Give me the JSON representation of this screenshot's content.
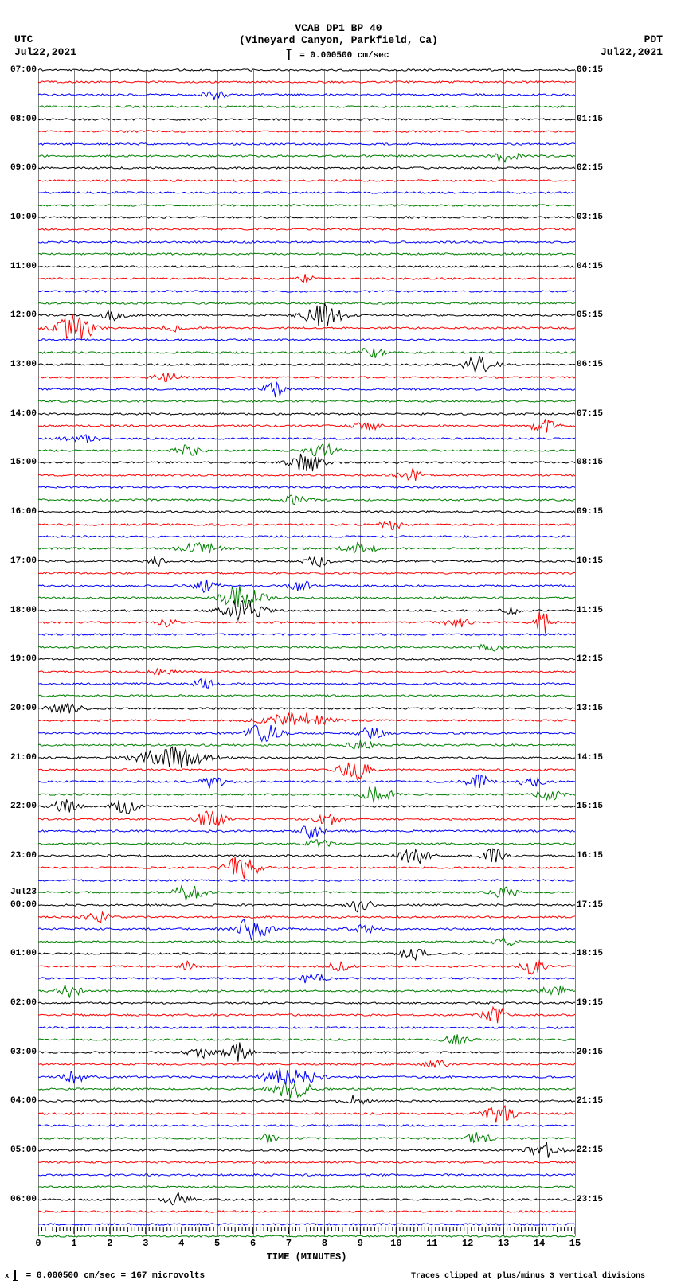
{
  "header": {
    "title1": "VCAB DP1 BP 40",
    "title2": "(Vineyard Canyon, Parkfield, Ca)",
    "scale_text": "= 0.000500 cm/sec",
    "left_tz": "UTC",
    "left_date": "Jul22,2021",
    "right_tz": "PDT",
    "right_date": "Jul22,2021"
  },
  "plot": {
    "colors": [
      "#000000",
      "#ff0000",
      "#0000ff",
      "#008000"
    ],
    "grid_color": "#808080",
    "background": "#ffffff",
    "x_min": 0,
    "x_max": 15,
    "x_ticks": [
      0,
      1,
      2,
      3,
      4,
      5,
      6,
      7,
      8,
      9,
      10,
      11,
      12,
      13,
      14,
      15
    ],
    "x_label": "TIME (MINUTES)",
    "trace_count": 96,
    "noise_amp": 1.2,
    "left_labels": {
      "0": "07:00",
      "4": "08:00",
      "8": "09:00",
      "12": "10:00",
      "16": "11:00",
      "20": "12:00",
      "24": "13:00",
      "28": "14:00",
      "32": "15:00",
      "36": "16:00",
      "40": "17:00",
      "44": "18:00",
      "48": "19:00",
      "52": "20:00",
      "56": "21:00",
      "60": "22:00",
      "64": "23:00",
      "67": "Jul23",
      "68": "00:00",
      "72": "01:00",
      "76": "02:00",
      "80": "03:00",
      "84": "04:00",
      "88": "05:00",
      "92": "06:00"
    },
    "right_labels": {
      "0": "00:15",
      "4": "01:15",
      "8": "02:15",
      "12": "03:15",
      "16": "04:15",
      "20": "05:15",
      "24": "06:15",
      "28": "07:15",
      "32": "08:15",
      "36": "09:15",
      "40": "10:15",
      "44": "11:15",
      "48": "12:15",
      "52": "13:15",
      "56": "14:15",
      "60": "15:15",
      "64": "16:15",
      "68": "17:15",
      "72": "18:15",
      "76": "19:15",
      "80": "20:15",
      "84": "21:15",
      "88": "22:15",
      "92": "23:15"
    },
    "events": [
      {
        "trace": 2,
        "x": 0.33,
        "amp": 5,
        "w": 0.03
      },
      {
        "trace": 7,
        "x": 0.87,
        "amp": 8,
        "w": 0.03
      },
      {
        "trace": 17,
        "x": 0.5,
        "amp": 5,
        "w": 0.02
      },
      {
        "trace": 20,
        "x": 0.53,
        "amp": 14,
        "w": 0.05
      },
      {
        "trace": 20,
        "x": 0.14,
        "amp": 6,
        "w": 0.03
      },
      {
        "trace": 21,
        "x": 0.07,
        "amp": 16,
        "w": 0.05
      },
      {
        "trace": 21,
        "x": 0.25,
        "amp": 6,
        "w": 0.02
      },
      {
        "trace": 23,
        "x": 0.62,
        "amp": 7,
        "w": 0.03
      },
      {
        "trace": 24,
        "x": 0.82,
        "amp": 10,
        "w": 0.04
      },
      {
        "trace": 25,
        "x": 0.24,
        "amp": 7,
        "w": 0.03
      },
      {
        "trace": 26,
        "x": 0.44,
        "amp": 9,
        "w": 0.03
      },
      {
        "trace": 29,
        "x": 0.61,
        "amp": 7,
        "w": 0.03
      },
      {
        "trace": 29,
        "x": 0.94,
        "amp": 9,
        "w": 0.03
      },
      {
        "trace": 30,
        "x": 0.08,
        "amp": 6,
        "w": 0.04
      },
      {
        "trace": 31,
        "x": 0.28,
        "amp": 7,
        "w": 0.03
      },
      {
        "trace": 31,
        "x": 0.53,
        "amp": 8,
        "w": 0.04
      },
      {
        "trace": 32,
        "x": 0.5,
        "amp": 12,
        "w": 0.04
      },
      {
        "trace": 33,
        "x": 0.69,
        "amp": 9,
        "w": 0.03
      },
      {
        "trace": 35,
        "x": 0.48,
        "amp": 6,
        "w": 0.03
      },
      {
        "trace": 37,
        "x": 0.66,
        "amp": 6,
        "w": 0.03
      },
      {
        "trace": 39,
        "x": 0.3,
        "amp": 7,
        "w": 0.05
      },
      {
        "trace": 39,
        "x": 0.6,
        "amp": 7,
        "w": 0.04
      },
      {
        "trace": 40,
        "x": 0.22,
        "amp": 6,
        "w": 0.02
      },
      {
        "trace": 40,
        "x": 0.52,
        "amp": 8,
        "w": 0.03
      },
      {
        "trace": 42,
        "x": 0.31,
        "amp": 8,
        "w": 0.03
      },
      {
        "trace": 42,
        "x": 0.49,
        "amp": 6,
        "w": 0.03
      },
      {
        "trace": 43,
        "x": 0.38,
        "amp": 16,
        "w": 0.05
      },
      {
        "trace": 44,
        "x": 0.38,
        "amp": 14,
        "w": 0.05
      },
      {
        "trace": 44,
        "x": 0.88,
        "amp": 6,
        "w": 0.02
      },
      {
        "trace": 45,
        "x": 0.24,
        "amp": 7,
        "w": 0.02
      },
      {
        "trace": 45,
        "x": 0.78,
        "amp": 6,
        "w": 0.03
      },
      {
        "trace": 45,
        "x": 0.94,
        "amp": 15,
        "w": 0.02
      },
      {
        "trace": 47,
        "x": 0.84,
        "amp": 5,
        "w": 0.03
      },
      {
        "trace": 49,
        "x": 0.23,
        "amp": 5,
        "w": 0.03
      },
      {
        "trace": 50,
        "x": 0.31,
        "amp": 6,
        "w": 0.03
      },
      {
        "trace": 52,
        "x": 0.05,
        "amp": 8,
        "w": 0.04
      },
      {
        "trace": 53,
        "x": 0.48,
        "amp": 10,
        "w": 0.08
      },
      {
        "trace": 54,
        "x": 0.42,
        "amp": 12,
        "w": 0.04
      },
      {
        "trace": 54,
        "x": 0.62,
        "amp": 8,
        "w": 0.03
      },
      {
        "trace": 55,
        "x": 0.6,
        "amp": 6,
        "w": 0.03
      },
      {
        "trace": 56,
        "x": 0.25,
        "amp": 14,
        "w": 0.08
      },
      {
        "trace": 57,
        "x": 0.59,
        "amp": 12,
        "w": 0.04
      },
      {
        "trace": 58,
        "x": 0.33,
        "amp": 8,
        "w": 0.03
      },
      {
        "trace": 58,
        "x": 0.82,
        "amp": 8,
        "w": 0.03
      },
      {
        "trace": 58,
        "x": 0.92,
        "amp": 7,
        "w": 0.03
      },
      {
        "trace": 59,
        "x": 0.63,
        "amp": 10,
        "w": 0.04
      },
      {
        "trace": 59,
        "x": 0.95,
        "amp": 8,
        "w": 0.03
      },
      {
        "trace": 60,
        "x": 0.05,
        "amp": 9,
        "w": 0.03
      },
      {
        "trace": 60,
        "x": 0.16,
        "amp": 12,
        "w": 0.03
      },
      {
        "trace": 61,
        "x": 0.32,
        "amp": 10,
        "w": 0.04
      },
      {
        "trace": 61,
        "x": 0.54,
        "amp": 7,
        "w": 0.03
      },
      {
        "trace": 62,
        "x": 0.51,
        "amp": 10,
        "w": 0.03
      },
      {
        "trace": 63,
        "x": 0.52,
        "amp": 6,
        "w": 0.03
      },
      {
        "trace": 64,
        "x": 0.7,
        "amp": 10,
        "w": 0.04
      },
      {
        "trace": 64,
        "x": 0.85,
        "amp": 9,
        "w": 0.03
      },
      {
        "trace": 65,
        "x": 0.38,
        "amp": 16,
        "w": 0.04
      },
      {
        "trace": 67,
        "x": 0.28,
        "amp": 9,
        "w": 0.04
      },
      {
        "trace": 67,
        "x": 0.87,
        "amp": 8,
        "w": 0.03
      },
      {
        "trace": 68,
        "x": 0.6,
        "amp": 8,
        "w": 0.03
      },
      {
        "trace": 69,
        "x": 0.11,
        "amp": 7,
        "w": 0.03
      },
      {
        "trace": 70,
        "x": 0.4,
        "amp": 16,
        "w": 0.04
      },
      {
        "trace": 70,
        "x": 0.6,
        "amp": 8,
        "w": 0.03
      },
      {
        "trace": 71,
        "x": 0.87,
        "amp": 7,
        "w": 0.03
      },
      {
        "trace": 72,
        "x": 0.7,
        "amp": 8,
        "w": 0.03
      },
      {
        "trace": 73,
        "x": 0.28,
        "amp": 6,
        "w": 0.02
      },
      {
        "trace": 73,
        "x": 0.56,
        "amp": 7,
        "w": 0.03
      },
      {
        "trace": 73,
        "x": 0.92,
        "amp": 9,
        "w": 0.03
      },
      {
        "trace": 74,
        "x": 0.51,
        "amp": 7,
        "w": 0.03
      },
      {
        "trace": 75,
        "x": 0.06,
        "amp": 8,
        "w": 0.03
      },
      {
        "trace": 75,
        "x": 0.96,
        "amp": 8,
        "w": 0.03
      },
      {
        "trace": 77,
        "x": 0.85,
        "amp": 10,
        "w": 0.03
      },
      {
        "trace": 79,
        "x": 0.78,
        "amp": 6,
        "w": 0.03
      },
      {
        "trace": 80,
        "x": 0.3,
        "amp": 8,
        "w": 0.03
      },
      {
        "trace": 80,
        "x": 0.37,
        "amp": 12,
        "w": 0.03
      },
      {
        "trace": 81,
        "x": 0.74,
        "amp": 6,
        "w": 0.03
      },
      {
        "trace": 82,
        "x": 0.07,
        "amp": 9,
        "w": 0.03
      },
      {
        "trace": 82,
        "x": 0.47,
        "amp": 14,
        "w": 0.06
      },
      {
        "trace": 83,
        "x": 0.47,
        "amp": 12,
        "w": 0.05
      },
      {
        "trace": 84,
        "x": 0.59,
        "amp": 8,
        "w": 0.03
      },
      {
        "trace": 85,
        "x": 0.86,
        "amp": 11,
        "w": 0.04
      },
      {
        "trace": 87,
        "x": 0.43,
        "amp": 6,
        "w": 0.02
      },
      {
        "trace": 87,
        "x": 0.82,
        "amp": 7,
        "w": 0.03
      },
      {
        "trace": 88,
        "x": 0.94,
        "amp": 10,
        "w": 0.04
      },
      {
        "trace": 92,
        "x": 0.26,
        "amp": 10,
        "w": 0.03
      }
    ]
  },
  "footer": {
    "left": "= 0.000500 cm/sec =    167 microvolts",
    "right": "Traces clipped at plus/minus 3 vertical divisions"
  }
}
